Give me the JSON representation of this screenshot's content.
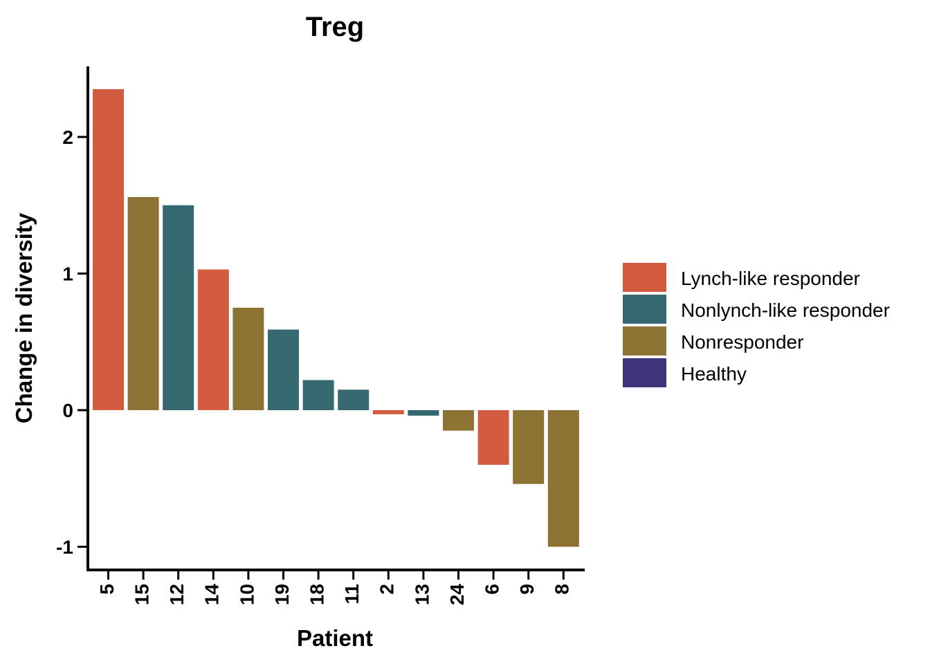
{
  "chart_data": {
    "type": "bar",
    "title": "Treg",
    "xlabel": "Patient",
    "ylabel": "Change in diversity",
    "ylim": [
      -1.13,
      2.5
    ],
    "yticks": [
      -1,
      0,
      1,
      2
    ],
    "ytick_labels": [
      "-1",
      "0",
      "1",
      "2"
    ],
    "grid": false,
    "legend_position": "right",
    "categories": [
      "5",
      "15",
      "12",
      "14",
      "10",
      "19",
      "18",
      "11",
      "2",
      "13",
      "24",
      "6",
      "9",
      "8"
    ],
    "values": [
      2.35,
      1.56,
      1.5,
      1.03,
      0.75,
      0.59,
      0.22,
      0.15,
      -0.03,
      -0.04,
      -0.15,
      -0.4,
      -0.54,
      -1.0
    ],
    "groups": [
      "Lynch-like responder",
      "Nonresponder",
      "Nonlynch-like responder",
      "Lynch-like responder",
      "Nonresponder",
      "Nonlynch-like responder",
      "Nonlynch-like responder",
      "Nonlynch-like responder",
      "Lynch-like responder",
      "Nonlynch-like responder",
      "Nonresponder",
      "Lynch-like responder",
      "Nonresponder",
      "Nonresponder"
    ],
    "legend": [
      {
        "name": "Lynch-like responder",
        "color": "#D35B40"
      },
      {
        "name": "Nonlynch-like responder",
        "color": "#356871"
      },
      {
        "name": "Nonresponder",
        "color": "#8C7233"
      },
      {
        "name": "Healthy",
        "color": "#3D347D"
      }
    ]
  }
}
